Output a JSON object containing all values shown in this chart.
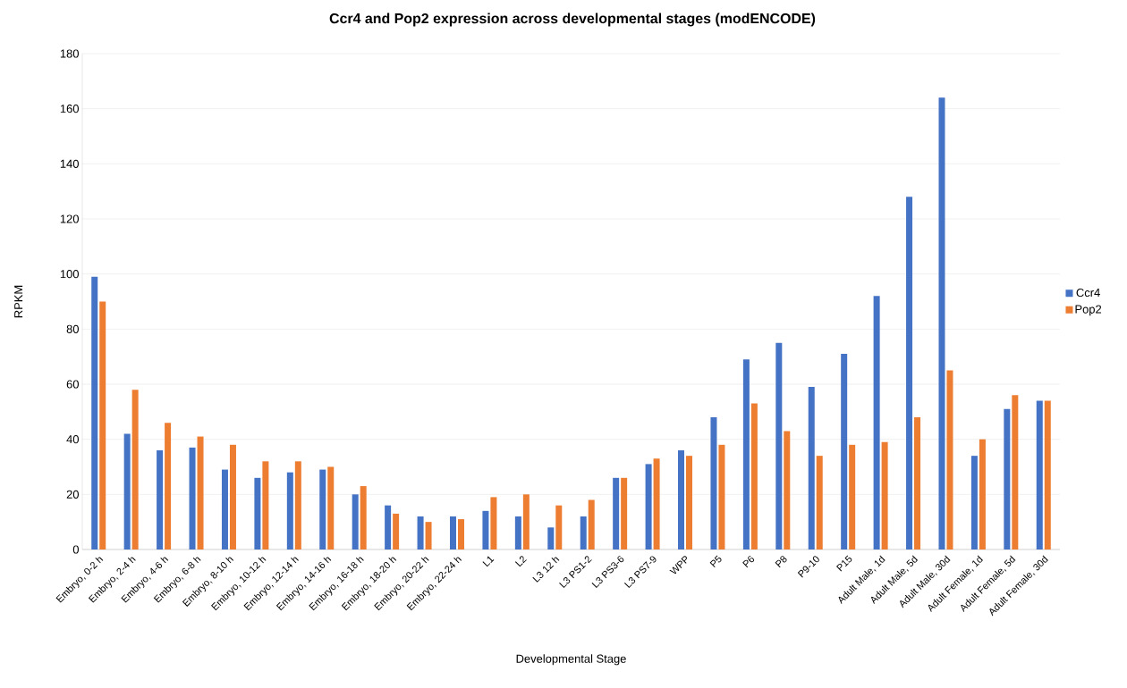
{
  "chart_data": {
    "type": "bar",
    "title": "Ccr4 and Pop2 expression across developmental stages (modENCODE)",
    "xlabel": "Developmental Stage",
    "ylabel": "RPKM",
    "categories": [
      "Embryo, 0-2 h",
      "Embryo, 2-4 h",
      "Embryo, 4-6 h",
      "Embryo, 6-8 h",
      "Embryo, 8-10 h",
      "Embryo, 10-12 h",
      "Embryo, 12-14 h",
      "Embryo, 14-16 h",
      "Embryo, 16-18 h",
      "Embryo, 18-20 h",
      "Embryo, 20-22 h",
      "Embryo, 22-24 h",
      "L1",
      "L2",
      "L3 12 h",
      "L3 PS1-2",
      "L3 PS3-6",
      "L3 PS7-9",
      "WPP",
      "P5",
      "P6",
      "P8",
      "P9-10",
      "P15",
      "Adult Male, 1d",
      "Adult Male, 5d",
      "Adult Male, 30d",
      "Adult Female, 1d",
      "Adult Female, 5d",
      "Adult Female, 30d"
    ],
    "series": [
      {
        "name": "Ccr4",
        "color": "#4472c4",
        "values": [
          99,
          42,
          36,
          37,
          29,
          26,
          28,
          29,
          20,
          16,
          12,
          12,
          14,
          12,
          8,
          12,
          26,
          31,
          36,
          48,
          69,
          75,
          59,
          71,
          92,
          128,
          164,
          34,
          51,
          54
        ]
      },
      {
        "name": "Pop2",
        "color": "#ed7d31",
        "values": [
          90,
          58,
          46,
          41,
          38,
          32,
          32,
          30,
          23,
          13,
          10,
          11,
          19,
          20,
          16,
          18,
          26,
          33,
          34,
          38,
          53,
          43,
          34,
          38,
          39,
          48,
          65,
          40,
          56,
          54
        ]
      }
    ],
    "ylim": [
      0,
      180
    ],
    "yticks": [
      0,
      20,
      40,
      60,
      80,
      100,
      120,
      140,
      160,
      180
    ],
    "grid": "y",
    "legend": "right"
  }
}
